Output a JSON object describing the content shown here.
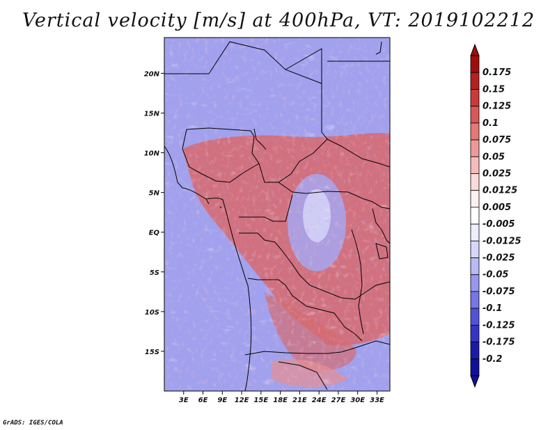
{
  "title": "Vertical velocity [m/s] at 400hPa, VT: 2019102212",
  "credit": "GrADS: IGES/COLA",
  "map": {
    "lat_range": [
      -20,
      24.5
    ],
    "lon_range": [
      0,
      35
    ],
    "lat_ticks": [
      {
        "value": 20,
        "label": "20N"
      },
      {
        "value": 15,
        "label": "15N"
      },
      {
        "value": 10,
        "label": "10N"
      },
      {
        "value": 5,
        "label": "5N"
      },
      {
        "value": 0,
        "label": "EQ"
      },
      {
        "value": -5,
        "label": "5S"
      },
      {
        "value": -10,
        "label": "10S"
      },
      {
        "value": -15,
        "label": "15S"
      }
    ],
    "lon_ticks": [
      {
        "value": 3,
        "label": "3E"
      },
      {
        "value": 6,
        "label": "6E"
      },
      {
        "value": 9,
        "label": "9E"
      },
      {
        "value": 12,
        "label": "12E"
      },
      {
        "value": 15,
        "label": "15E"
      },
      {
        "value": 18,
        "label": "18E"
      },
      {
        "value": 21,
        "label": "21E"
      },
      {
        "value": 24,
        "label": "24E"
      },
      {
        "value": 27,
        "label": "27E"
      },
      {
        "value": 30,
        "label": "30E"
      },
      {
        "value": 33,
        "label": "33E"
      }
    ]
  },
  "colorbar": {
    "levels": [
      {
        "label": "0.175",
        "color": "#a00d0d"
      },
      {
        "label": "0.15",
        "color": "#b52020"
      },
      {
        "label": "0.125",
        "color": "#c93a3a"
      },
      {
        "label": "0.1",
        "color": "#d95757"
      },
      {
        "label": "0.075",
        "color": "#e67878"
      },
      {
        "label": "0.05",
        "color": "#ef9999"
      },
      {
        "label": "0.025",
        "color": "#f5bcbc"
      },
      {
        "label": "0.0125",
        "color": "#fadada"
      },
      {
        "label": "0.005",
        "color": "#fdf0f0"
      },
      {
        "label": "-0.005",
        "color": "#ffffff"
      },
      {
        "label": "-0.0125",
        "color": "#eeeefd"
      },
      {
        "label": "-0.025",
        "color": "#d6d6fa"
      },
      {
        "label": "-0.05",
        "color": "#b9b9f5"
      },
      {
        "label": "-0.075",
        "color": "#9797ee"
      },
      {
        "label": "-0.1",
        "color": "#7676e5"
      },
      {
        "label": "-0.125",
        "color": "#5353d8"
      },
      {
        "label": "-0.175",
        "color": "#3434c6"
      },
      {
        "label": "-0.2",
        "color": "#1b1ba8"
      }
    ],
    "over_color": "#a00d0d",
    "under_color": "#10109a"
  }
}
